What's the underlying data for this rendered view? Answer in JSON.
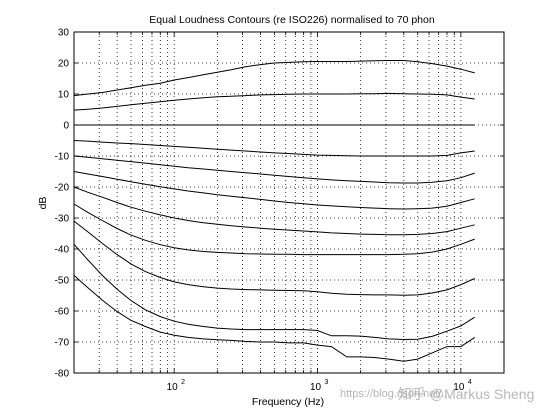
{
  "chart_data": {
    "type": "line",
    "title": "Equal Loudness Contours (re ISO226) normalised to 70 phon",
    "xlabel": "Frequency (Hz)",
    "ylabel": "dB",
    "xscale": "log",
    "xlim": [
      20,
      20000
    ],
    "ylim": [
      -80,
      30
    ],
    "grid": true,
    "x_ticks": [
      {
        "base": "10",
        "exp": "2",
        "value": 100
      },
      {
        "base": "10",
        "exp": "3",
        "value": 1000
      },
      {
        "base": "10",
        "exp": "4",
        "value": 10000
      }
    ],
    "y_ticks": [
      "30",
      "20",
      "10",
      "0",
      "-10",
      "-20",
      "-30",
      "-40",
      "-50",
      "-60",
      "-70",
      "-80"
    ],
    "x": [
      20,
      25,
      31.5,
      40,
      50,
      63,
      80,
      100,
      125,
      160,
      200,
      250,
      315,
      400,
      500,
      630,
      800,
      1000,
      1250,
      1600,
      2000,
      2500,
      3150,
      4000,
      5000,
      6300,
      8000,
      10000,
      12500
    ],
    "series": [
      {
        "values": [
          9.5,
          10.0,
          10.5,
          11.3,
          12.0,
          12.8,
          13.5,
          14.5,
          15.3,
          16.2,
          17.0,
          17.8,
          18.8,
          19.5,
          20.0,
          20.2,
          20.4,
          20.5,
          20.5,
          20.5,
          20.6,
          20.7,
          20.8,
          20.8,
          20.4,
          19.8,
          19.0,
          18.0,
          16.8
        ]
      },
      {
        "values": [
          4.8,
          5.1,
          5.5,
          6.0,
          6.5,
          7.0,
          7.5,
          8.0,
          8.4,
          8.8,
          9.1,
          9.3,
          9.5,
          9.7,
          9.8,
          9.9,
          10.0,
          10.0,
          10.0,
          10.0,
          10.1,
          10.1,
          10.2,
          10.1,
          10.0,
          9.9,
          9.7,
          9.0,
          8.4
        ]
      },
      {
        "values": [
          0,
          0,
          0,
          0,
          0,
          0,
          0,
          0,
          0,
          0,
          0,
          0,
          0,
          0,
          0,
          0,
          0,
          0,
          0,
          0,
          0,
          0,
          0,
          0,
          0,
          0,
          0,
          0,
          0
        ]
      },
      {
        "values": [
          -5.0,
          -5.2,
          -5.5,
          -5.8,
          -6.0,
          -6.3,
          -6.6,
          -6.9,
          -7.2,
          -7.5,
          -7.8,
          -8.1,
          -8.4,
          -8.7,
          -9.0,
          -9.2,
          -9.5,
          -9.7,
          -9.8,
          -9.9,
          -10.0,
          -10.0,
          -10.0,
          -10.0,
          -10.0,
          -10.0,
          -9.8,
          -9.0,
          -8.4
        ]
      },
      {
        "values": [
          -10.0,
          -10.4,
          -10.9,
          -11.4,
          -11.8,
          -12.3,
          -12.8,
          -13.3,
          -13.8,
          -14.2,
          -14.6,
          -15.0,
          -15.4,
          -15.8,
          -16.2,
          -16.6,
          -17.0,
          -17.4,
          -17.7,
          -18.0,
          -18.2,
          -18.4,
          -18.6,
          -18.7,
          -18.7,
          -18.5,
          -18.0,
          -17.0,
          -15.5
        ]
      },
      {
        "values": [
          -15.0,
          -15.8,
          -16.6,
          -17.5,
          -18.3,
          -19.1,
          -19.9,
          -20.6,
          -21.3,
          -21.9,
          -22.5,
          -23.0,
          -23.5,
          -24.0,
          -24.5,
          -25.0,
          -25.4,
          -25.8,
          -26.1,
          -26.4,
          -26.6,
          -26.8,
          -27.0,
          -27.1,
          -27.0,
          -26.8,
          -26.2,
          -25.0,
          -23.8
        ]
      },
      {
        "values": [
          -20.0,
          -21.7,
          -23.3,
          -25.0,
          -26.5,
          -27.8,
          -29.0,
          -30.0,
          -30.8,
          -31.5,
          -32.0,
          -32.5,
          -32.9,
          -33.3,
          -33.6,
          -33.9,
          -34.2,
          -34.5,
          -34.8,
          -35.0,
          -35.2,
          -35.3,
          -35.4,
          -35.4,
          -35.3,
          -35.0,
          -34.4,
          -33.3,
          -32.2
        ]
      },
      {
        "values": [
          -25.5,
          -28.2,
          -30.8,
          -33.4,
          -35.5,
          -37.2,
          -38.6,
          -39.6,
          -40.3,
          -40.8,
          -41.1,
          -41.3,
          -41.5,
          -41.6,
          -41.7,
          -41.7,
          -41.8,
          -41.8,
          -41.8,
          -41.8,
          -41.8,
          -41.8,
          -41.8,
          -41.7,
          -41.5,
          -41.0,
          -40.0,
          -38.5,
          -36.8
        ]
      },
      {
        "values": [
          -31.0,
          -34.5,
          -38.2,
          -41.8,
          -44.8,
          -47.3,
          -49.2,
          -50.6,
          -51.5,
          -52.2,
          -52.6,
          -52.9,
          -53.1,
          -53.2,
          -53.3,
          -53.4,
          -53.5,
          -53.8,
          -54.3,
          -54.6,
          -54.7,
          -54.8,
          -54.8,
          -54.9,
          -54.8,
          -54.2,
          -53.2,
          -51.5,
          -49.5
        ]
      },
      {
        "values": [
          -38.5,
          -43.5,
          -48.5,
          -53.0,
          -56.6,
          -59.6,
          -61.8,
          -63.3,
          -64.3,
          -65.0,
          -65.5,
          -65.8,
          -66.0,
          -66.0,
          -66.0,
          -66.0,
          -66.0,
          -66.3,
          -68.0,
          -68.0,
          -68.1,
          -68.5,
          -69.0,
          -69.2,
          -69.1,
          -68.2,
          -66.5,
          -64.8,
          -62.0
        ]
      },
      {
        "values": [
          -48.5,
          -52.5,
          -56.5,
          -60.2,
          -63.0,
          -65.0,
          -66.8,
          -67.8,
          -68.5,
          -69.0,
          -69.3,
          -69.5,
          -69.8,
          -70.0,
          -70.0,
          -70.3,
          -70.3,
          -71.0,
          -71.5,
          -74.8,
          -74.8,
          -75.0,
          -75.5,
          -76.2,
          -75.5,
          -73.5,
          -71.5,
          -71.5,
          -68.5
        ]
      }
    ]
  },
  "watermark": {
    "site_text": "https://blog.csdn.net/...",
    "brand_text": "知乎 @Markus Sheng"
  }
}
